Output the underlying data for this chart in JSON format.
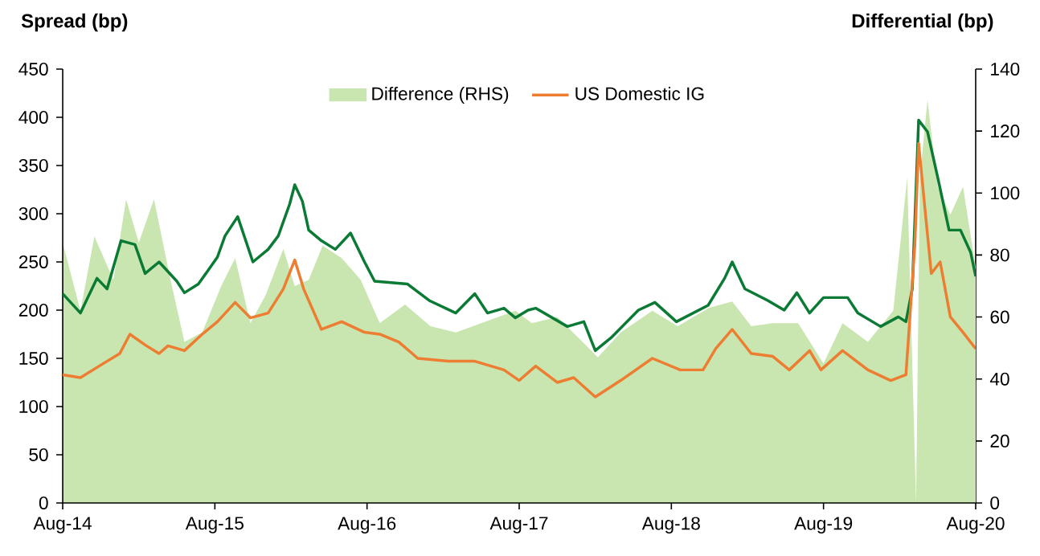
{
  "chart_data": {
    "type": "line",
    "ylabel": "Spread (bp)",
    "y2label": "Differential (bp)",
    "xlim": [
      "2014-08-01",
      "2020-08-01"
    ],
    "xticks": [
      {
        "value": "2014-08-01",
        "label": "Aug-14"
      },
      {
        "value": "2015-08-01",
        "label": "Aug-15"
      },
      {
        "value": "2016-08-01",
        "label": "Aug-16"
      },
      {
        "value": "2017-08-01",
        "label": "Aug-17"
      },
      {
        "value": "2018-08-01",
        "label": "Aug-18"
      },
      {
        "value": "2019-08-01",
        "label": "Aug-19"
      },
      {
        "value": "2020-08-01",
        "label": "Aug-20"
      }
    ],
    "ylim": [
      0,
      450
    ],
    "yticks": [
      0,
      50,
      100,
      150,
      200,
      250,
      300,
      350,
      400,
      450
    ],
    "y2lim": [
      0,
      140
    ],
    "y2ticks": [
      0,
      20,
      40,
      60,
      80,
      100,
      120,
      140
    ],
    "legend": "top",
    "series": [
      {
        "name": "Difference (RHS)",
        "type": "area",
        "axis": "y2",
        "color": "#c9e6b0",
        "x": [
          "2014-08-01",
          "2014-09-13",
          "2014-10-16",
          "2014-12-01",
          "2015-01-01",
          "2015-02-01",
          "2015-03-07",
          "2015-04-16",
          "2015-05-19",
          "2015-07-01",
          "2015-08-16",
          "2015-09-19",
          "2015-10-25",
          "2015-12-01",
          "2016-01-13",
          "2016-02-10",
          "2016-03-13",
          "2016-04-16",
          "2016-06-01",
          "2016-07-16",
          "2016-09-01",
          "2016-11-01",
          "2017-01-01",
          "2017-03-01",
          "2017-05-01",
          "2017-07-22",
          "2017-09-01",
          "2017-11-01",
          "2018-01-01",
          "2018-02-07",
          "2018-04-01",
          "2018-06-16",
          "2018-08-16",
          "2018-11-01",
          "2018-12-25",
          "2019-02-10",
          "2019-04-01",
          "2019-06-01",
          "2019-08-01",
          "2019-09-16",
          "2019-11-16",
          "2020-01-16",
          "2020-02-19",
          "2020-03-10",
          "2020-03-19",
          "2020-04-07",
          "2020-05-01",
          "2020-06-01",
          "2020-07-01",
          "2020-08-01"
        ],
        "values": [
          84,
          62,
          86,
          72,
          98,
          84,
          98,
          72,
          52,
          55,
          70,
          79,
          58,
          67,
          82,
          70,
          72,
          83,
          79,
          72,
          58,
          64,
          57,
          55,
          58,
          62,
          58,
          60,
          52,
          47,
          55,
          62,
          57,
          63,
          65,
          57,
          58,
          58,
          45,
          58,
          52,
          62,
          105,
          0,
          105,
          130,
          102,
          93,
          102,
          76
        ]
      },
      {
        "color": "#0a7a35",
        "x": [
          "2014-08-01",
          "2014-09-13",
          "2014-10-22",
          "2014-11-16",
          "2014-12-19",
          "2015-01-22",
          "2015-02-16",
          "2015-03-19",
          "2015-05-01",
          "2015-05-19",
          "2015-06-22",
          "2015-08-07",
          "2015-08-25",
          "2015-09-25",
          "2015-11-01",
          "2015-12-07",
          "2016-01-01",
          "2016-01-28",
          "2016-02-10",
          "2016-02-28",
          "2016-03-13",
          "2016-04-13",
          "2016-05-16",
          "2016-06-22",
          "2016-07-25",
          "2016-08-19",
          "2016-11-07",
          "2016-12-28",
          "2017-03-01",
          "2017-04-16",
          "2017-05-16",
          "2017-06-25",
          "2017-07-22",
          "2017-08-22",
          "2017-09-10",
          "2017-11-25",
          "2018-01-04",
          "2018-02-01",
          "2018-03-10",
          "2018-05-13",
          "2018-06-22",
          "2018-08-13",
          "2018-10-28",
          "2018-12-07",
          "2018-12-25",
          "2019-01-25",
          "2019-03-19",
          "2019-04-28",
          "2019-05-28",
          "2019-06-28",
          "2019-08-01",
          "2019-09-28",
          "2019-10-22",
          "2019-12-16",
          "2020-01-28",
          "2020-02-16",
          "2020-03-01",
          "2020-03-16",
          "2020-04-07",
          "2020-05-01",
          "2020-05-28",
          "2020-06-25",
          "2020-07-19",
          "2020-08-01"
        ],
        "values": [
          217,
          197,
          233,
          222,
          272,
          268,
          238,
          250,
          230,
          218,
          227,
          255,
          277,
          297,
          250,
          263,
          277,
          310,
          330,
          313,
          283,
          272,
          263,
          280,
          250,
          230,
          227,
          210,
          197,
          217,
          197,
          202,
          192,
          200,
          202,
          183,
          188,
          158,
          172,
          200,
          208,
          188,
          205,
          233,
          250,
          222,
          210,
          200,
          218,
          197,
          213,
          213,
          197,
          183,
          193,
          188,
          222,
          397,
          385,
          338,
          283,
          283,
          260,
          235
        ]
      },
      {
        "name": "US Domestic IG",
        "color": "#ed7d31",
        "x": [
          "2014-08-01",
          "2014-09-13",
          "2014-11-01",
          "2014-12-16",
          "2015-01-10",
          "2015-02-19",
          "2015-03-19",
          "2015-04-10",
          "2015-05-19",
          "2015-07-01",
          "2015-08-07",
          "2015-09-19",
          "2015-10-25",
          "2015-12-07",
          "2016-01-13",
          "2016-02-10",
          "2016-03-01",
          "2016-04-13",
          "2016-06-01",
          "2016-07-25",
          "2016-09-01",
          "2016-10-16",
          "2016-12-01",
          "2017-02-13",
          "2017-04-16",
          "2017-06-25",
          "2017-08-01",
          "2017-09-10",
          "2017-11-01",
          "2017-12-10",
          "2018-02-01",
          "2018-04-01",
          "2018-06-16",
          "2018-08-22",
          "2018-10-16",
          "2018-11-16",
          "2018-12-25",
          "2019-02-10",
          "2019-04-01",
          "2019-05-10",
          "2019-06-28",
          "2019-07-25",
          "2019-09-16",
          "2019-11-16",
          "2020-01-10",
          "2020-02-16",
          "2020-03-07",
          "2020-03-16",
          "2020-04-01",
          "2020-04-16",
          "2020-05-07",
          "2020-06-01",
          "2020-07-01",
          "2020-08-01"
        ],
        "values": [
          133,
          130,
          143,
          155,
          175,
          163,
          155,
          163,
          158,
          175,
          188,
          208,
          192,
          197,
          222,
          252,
          222,
          180,
          188,
          177,
          175,
          167,
          150,
          147,
          147,
          138,
          127,
          142,
          125,
          130,
          110,
          127,
          150,
          138,
          138,
          160,
          180,
          155,
          152,
          138,
          158,
          138,
          158,
          138,
          127,
          133,
          267,
          373,
          305,
          238,
          250,
          193,
          177,
          160
        ]
      }
    ]
  }
}
